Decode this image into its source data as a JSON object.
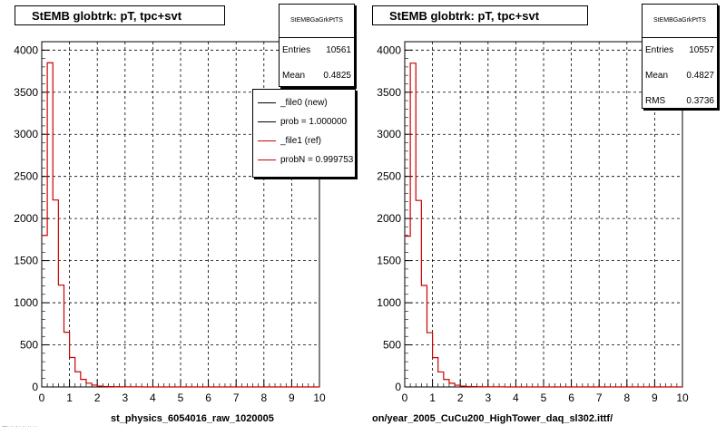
{
  "colors": {
    "new": "#000000",
    "ref": "#cc0000",
    "grid": "#000000"
  },
  "chart_data": [
    {
      "type": "bar",
      "histogram": "step",
      "title": "StEMB globtrk: pT, tpc+svt",
      "xlabel": "st_physics_6054016_raw_1020005",
      "xlim": [
        0,
        10
      ],
      "ylim": [
        0,
        4100
      ],
      "xticks": [
        0,
        1,
        2,
        3,
        4,
        5,
        6,
        7,
        8,
        9,
        10
      ],
      "yticks": [
        0,
        500,
        1000,
        1500,
        2000,
        2500,
        3000,
        3500,
        4000
      ],
      "grid": true,
      "bin_width": 0.2,
      "bin_edges_start": 0,
      "values": [
        1800,
        3850,
        2220,
        1210,
        650,
        350,
        180,
        90,
        45,
        22,
        10,
        6,
        4,
        3,
        2,
        1,
        1,
        1,
        0,
        0,
        0,
        0,
        0,
        0,
        0,
        0,
        0,
        0,
        0,
        0,
        0,
        0,
        0,
        0,
        0,
        0,
        0,
        0,
        0,
        0,
        0,
        0,
        0,
        0,
        0,
        0,
        0,
        0,
        0,
        0
      ],
      "stats": {
        "name": "StEMBGaGrkPtTS",
        "rows": [
          {
            "label": "Entries",
            "value": "10561"
          },
          {
            "label": "Mean",
            "value": "0.4825"
          }
        ]
      },
      "legend": [
        {
          "label": "_file0 (new)",
          "color": "#000000"
        },
        {
          "label": "prob = 1.000000",
          "color": "#000000"
        },
        {
          "label": "_file1 (ref)",
          "color": "#cc0000"
        },
        {
          "label": "probN = 0.999753",
          "color": "#cc0000"
        }
      ]
    },
    {
      "type": "bar",
      "histogram": "step",
      "title": "StEMB globtrk: pT, tpc+svt",
      "xlabel": "on/year_2005_CuCu200_HighTower_daq_sl302.ittf/",
      "xlim": [
        0,
        10
      ],
      "ylim": [
        0,
        4100
      ],
      "xticks": [
        0,
        1,
        2,
        3,
        4,
        5,
        6,
        7,
        8,
        9,
        10
      ],
      "yticks": [
        0,
        500,
        1000,
        1500,
        2000,
        2500,
        3000,
        3500,
        4000
      ],
      "grid": true,
      "bin_width": 0.2,
      "bin_edges_start": 0,
      "values": [
        1790,
        3845,
        2215,
        1205,
        645,
        348,
        178,
        89,
        44,
        21,
        10,
        6,
        4,
        3,
        2,
        1,
        1,
        1,
        0,
        0,
        0,
        0,
        0,
        0,
        0,
        0,
        0,
        0,
        0,
        0,
        0,
        0,
        0,
        0,
        0,
        0,
        0,
        0,
        0,
        0,
        0,
        0,
        0,
        0,
        0,
        0,
        0,
        0,
        0,
        0
      ],
      "stats": {
        "name": "StEMBGaGrkPtTS",
        "rows": [
          {
            "label": "Entries",
            "value": "10557"
          },
          {
            "label": "Mean",
            "value": "0.4827"
          },
          {
            "label": "RMS",
            "value": "0.3736"
          }
        ]
      }
    }
  ],
  "footer": "—· ·· - · ·· ·· · ·"
}
